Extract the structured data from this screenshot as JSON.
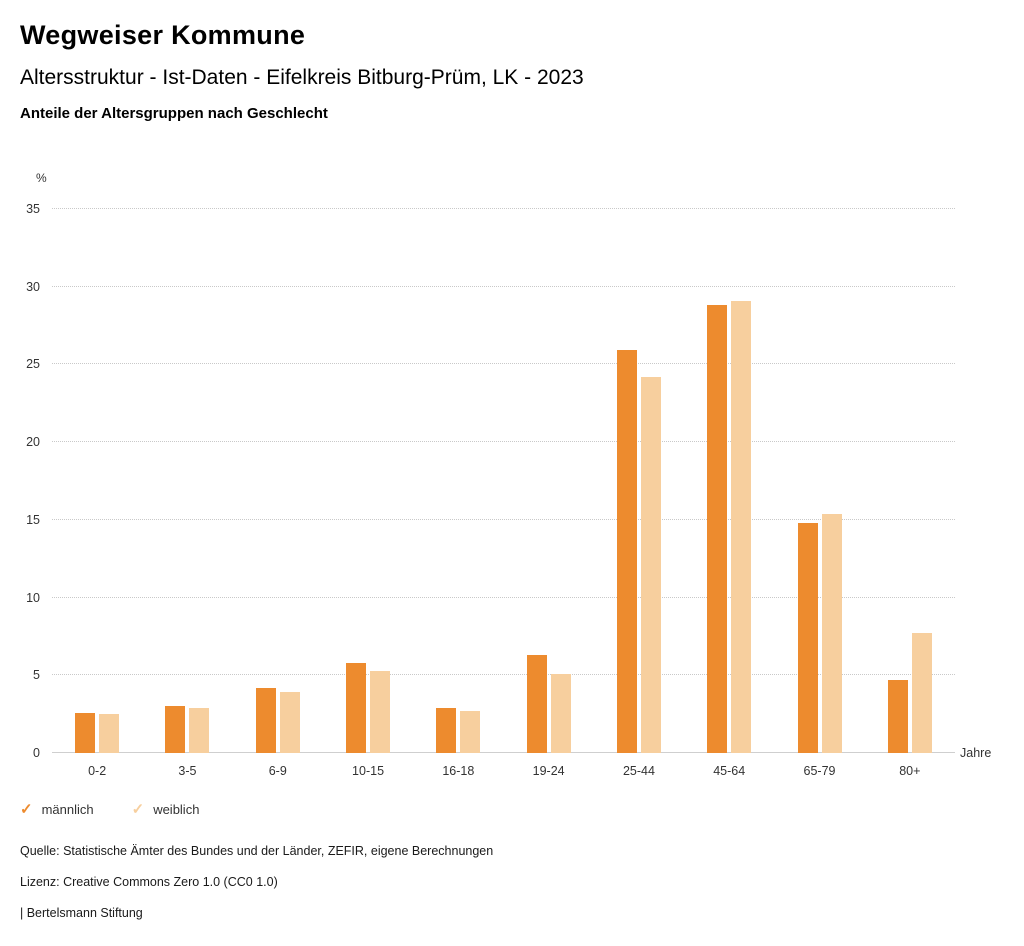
{
  "header": {
    "title": "Wegweiser Kommune",
    "subtitle": "Altersstruktur - Ist-Daten - Eifelkreis Bitburg-Prüm, LK - 2023",
    "chart_heading": "Anteile der Altersgruppen nach Geschlecht"
  },
  "chart_data": {
    "type": "bar",
    "title": "Anteile der Altersgruppen nach Geschlecht",
    "categories": [
      "0-2",
      "3-5",
      "6-9",
      "10-15",
      "16-18",
      "19-24",
      "25-44",
      "45-64",
      "65-79",
      "80+"
    ],
    "series": [
      {
        "name": "männlich",
        "color": "#ED8B2E",
        "values": [
          2.6,
          3.0,
          4.2,
          5.8,
          2.9,
          6.3,
          25.9,
          28.8,
          14.8,
          4.7
        ]
      },
      {
        "name": "weiblich",
        "color": "#F7CF9E",
        "values": [
          2.5,
          2.9,
          3.9,
          5.3,
          2.7,
          5.1,
          24.2,
          29.1,
          15.4,
          7.7
        ]
      }
    ],
    "ylabel": "%",
    "xlabel": "Jahre",
    "ylim": [
      0,
      35
    ],
    "yticks": [
      0,
      5,
      10,
      15,
      20,
      25,
      30,
      35
    ],
    "grid": true,
    "legend_position": "bottom"
  },
  "legend": {
    "items": [
      {
        "label": "männlich",
        "color": "#ED8B2E",
        "icon": "check-icon"
      },
      {
        "label": "weiblich",
        "color": "#F7CF9E",
        "icon": "check-icon"
      }
    ]
  },
  "footer": {
    "source": "Quelle: Statistische Ämter des Bundes und der Länder, ZEFIR, eigene Berechnungen",
    "license": "Lizenz: Creative Commons Zero 1.0 (CC0 1.0)",
    "attribution": "| Bertelsmann Stiftung"
  }
}
